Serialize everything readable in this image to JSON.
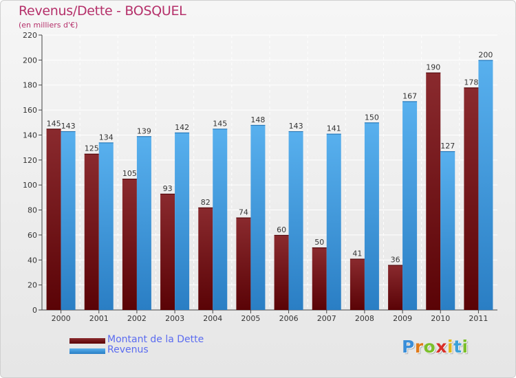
{
  "header": {
    "title": "Revenus/Dette - BOSQUEL",
    "subtitle": "(en milliers d'€)"
  },
  "chart_data": {
    "type": "bar",
    "categories": [
      "2000",
      "2001",
      "2002",
      "2003",
      "2004",
      "2005",
      "2006",
      "2007",
      "2008",
      "2009",
      "2010",
      "2011"
    ],
    "series": [
      {
        "name": "Montant de la Dette",
        "color": "#7a1418",
        "values": [
          145,
          125,
          105,
          93,
          82,
          74,
          60,
          50,
          41,
          36,
          190,
          178
        ]
      },
      {
        "name": "Revenus",
        "color": "#4aa3e6",
        "values": [
          143,
          134,
          139,
          142,
          145,
          148,
          143,
          141,
          150,
          167,
          127,
          200
        ]
      }
    ],
    "ylim": [
      0,
      220
    ],
    "yticks": [
      0,
      20,
      40,
      60,
      80,
      100,
      120,
      140,
      160,
      180,
      200,
      220
    ],
    "grid": true,
    "legend_position": "bottom-left",
    "data_labels": true
  },
  "legend": [
    {
      "label": "Montant de la Dette",
      "color": "#7a1418"
    },
    {
      "label": "Revenus",
      "color": "#4aa3e6"
    }
  ],
  "logo": {
    "letters": [
      "P",
      "r",
      "o",
      "x",
      "i",
      "t",
      "i"
    ],
    "colors": [
      "#3a8ed8",
      "#e07a1a",
      "#7bbf2a",
      "#d8302a",
      "#e0b81a",
      "#3aa0d8",
      "#7bbf2a"
    ]
  }
}
